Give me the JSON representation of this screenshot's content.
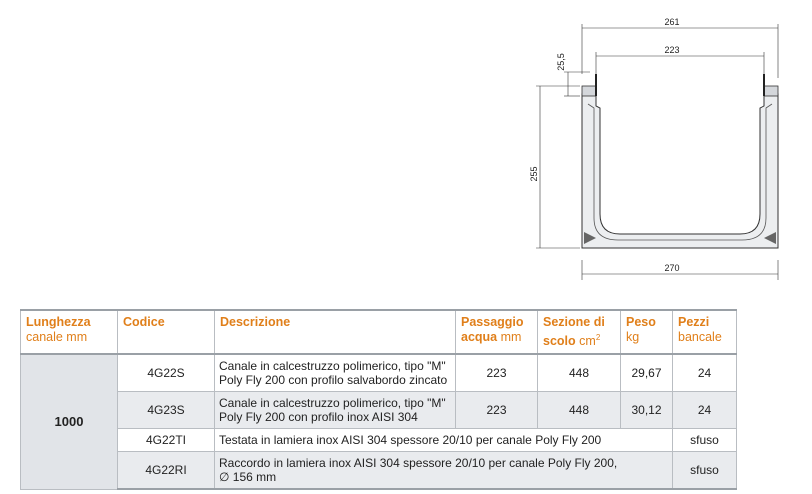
{
  "drawing": {
    "dim_top_outer": "261",
    "dim_top_inner": "223",
    "dim_flange": "25,5",
    "dim_height": "255",
    "dim_bottom": "270"
  },
  "table": {
    "headers": {
      "length": {
        "main": "Lunghezza",
        "sub": "canale mm"
      },
      "code": {
        "main": "Codice"
      },
      "description": {
        "main": "Descrizione"
      },
      "water": {
        "main1": "Passaggio",
        "main2": "acqua",
        "sub": "mm"
      },
      "section": {
        "main1": "Sezione di",
        "main2": "scolo",
        "sub": "cm",
        "sup": "2"
      },
      "weight": {
        "main": "Peso",
        "sub": "kg"
      },
      "pieces": {
        "main": "Pezzi",
        "sub": "bancale"
      }
    },
    "length_value": "1000",
    "rows": [
      {
        "code": "4G22S",
        "desc1": "Canale in calcestruzzo polimerico, tipo \"M\"",
        "desc2": "Poly Fly 200 con profilo salvabordo zincato",
        "water": "223",
        "section": "448",
        "weight": "29,67",
        "pieces": "24"
      },
      {
        "code": "4G23S",
        "desc1": "Canale in calcestruzzo polimerico, tipo \"M\"",
        "desc2": "Poly Fly 200 con profilo inox AISI 304",
        "water": "223",
        "section": "448",
        "weight": "30,12",
        "pieces": "24"
      },
      {
        "code": "4G22TI",
        "desc1": "Testata in lamiera inox AISI 304 spessore 20/10 per canale Poly Fly 200",
        "pieces": "sfuso"
      },
      {
        "code": "4G22RI",
        "desc1": "Raccordo in lamiera inox AISI 304 spessore 20/10 per canale Poly Fly 200,",
        "desc2": "∅ 156 mm",
        "pieces": "sfuso"
      }
    ]
  }
}
